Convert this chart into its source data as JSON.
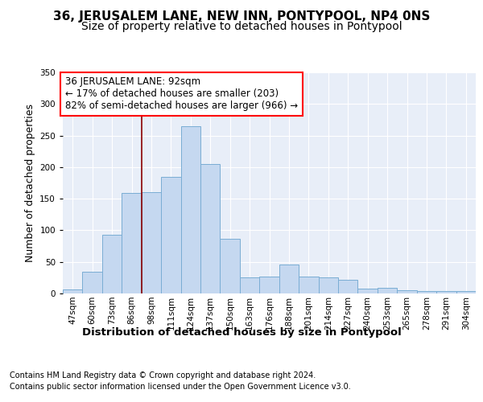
{
  "title": "36, JERUSALEM LANE, NEW INN, PONTYPOOL, NP4 0NS",
  "subtitle": "Size of property relative to detached houses in Pontypool",
  "xlabel": "Distribution of detached houses by size in Pontypool",
  "ylabel": "Number of detached properties",
  "footer1": "Contains HM Land Registry data © Crown copyright and database right 2024.",
  "footer2": "Contains public sector information licensed under the Open Government Licence v3.0.",
  "annotation_line1": "36 JERUSALEM LANE: 92sqm",
  "annotation_line2": "← 17% of detached houses are smaller (203)",
  "annotation_line3": "82% of semi-detached houses are larger (966) →",
  "bar_categories": [
    "47sqm",
    "60sqm",
    "73sqm",
    "86sqm",
    "98sqm",
    "111sqm",
    "124sqm",
    "137sqm",
    "150sqm",
    "163sqm",
    "176sqm",
    "188sqm",
    "201sqm",
    "214sqm",
    "227sqm",
    "240sqm",
    "253sqm",
    "265sqm",
    "278sqm",
    "291sqm",
    "304sqm"
  ],
  "bar_values": [
    6,
    35,
    93,
    159,
    160,
    184,
    265,
    205,
    87,
    26,
    27,
    46,
    27,
    26,
    22,
    8,
    9,
    5,
    4,
    4,
    4
  ],
  "bar_color": "#c5d8f0",
  "bar_edge_color": "#7aadd4",
  "red_line_x": 3.5,
  "ylim": [
    0,
    350
  ],
  "background_color": "#ffffff",
  "plot_bg_color": "#e8eef8",
  "grid_color": "#ffffff",
  "title_fontsize": 11,
  "subtitle_fontsize": 10,
  "xlabel_fontsize": 9.5,
  "ylabel_fontsize": 9,
  "tick_fontsize": 7.5,
  "annotation_fontsize": 8.5,
  "footer_fontsize": 7
}
